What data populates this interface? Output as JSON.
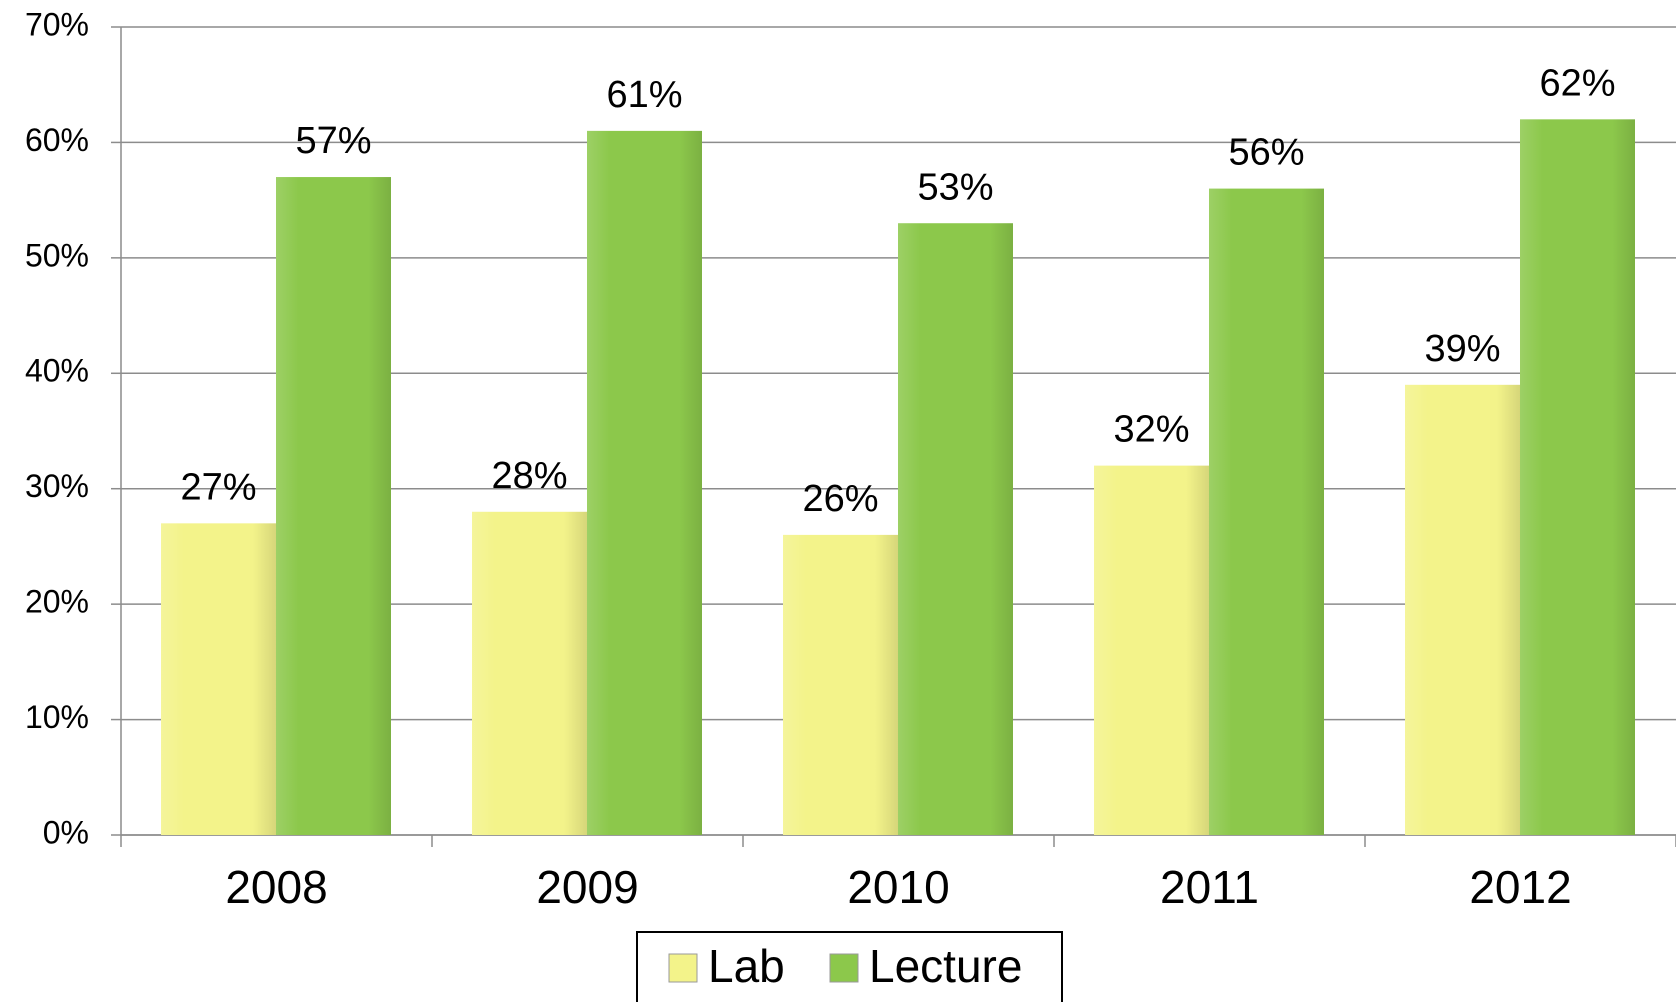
{
  "chart_data": {
    "type": "bar",
    "categories": [
      "2008",
      "2009",
      "2010",
      "2011",
      "2012"
    ],
    "series": [
      {
        "name": "Lab",
        "color": "#f3f38a",
        "values": [
          27,
          28,
          26,
          32,
          39
        ],
        "value_labels": [
          "27%",
          "28%",
          "26%",
          "32%",
          "39%"
        ]
      },
      {
        "name": "Lecture",
        "color": "#8cc84b",
        "values": [
          57,
          61,
          53,
          56,
          62
        ],
        "value_labels": [
          "57%",
          "61%",
          "53%",
          "56%",
          "62%"
        ]
      }
    ],
    "ylim": [
      0,
      70
    ],
    "yticks": [
      {
        "value": 0,
        "label": "0%"
      },
      {
        "value": 10,
        "label": "10%"
      },
      {
        "value": 20,
        "label": "20%"
      },
      {
        "value": 30,
        "label": "30%"
      },
      {
        "value": 40,
        "label": "40%"
      },
      {
        "value": 50,
        "label": "50%"
      },
      {
        "value": 60,
        "label": "60%"
      },
      {
        "value": 70,
        "label": "70%"
      }
    ],
    "grid": true,
    "legend": "bottom"
  }
}
